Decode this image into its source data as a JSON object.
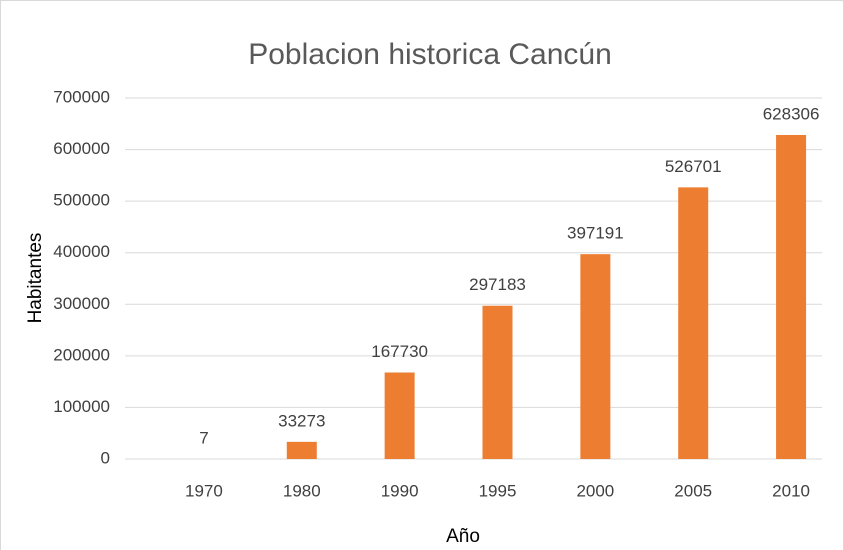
{
  "chart_data": {
    "type": "bar",
    "title": "Poblacion historica Cancún",
    "x_label": "Año",
    "y_label": "Habitantes",
    "categories": [
      "1970",
      "1980",
      "1990",
      "1995",
      "2000",
      "2005",
      "2010"
    ],
    "values": [
      7,
      33273,
      167730,
      297183,
      397191,
      526701,
      628306
    ],
    "color": "#ed7d31",
    "ylim": [
      0,
      700000
    ],
    "yticks": [
      0,
      100000,
      200000,
      300000,
      400000,
      500000,
      600000,
      700000
    ],
    "grid": true,
    "data_labels": true
  }
}
